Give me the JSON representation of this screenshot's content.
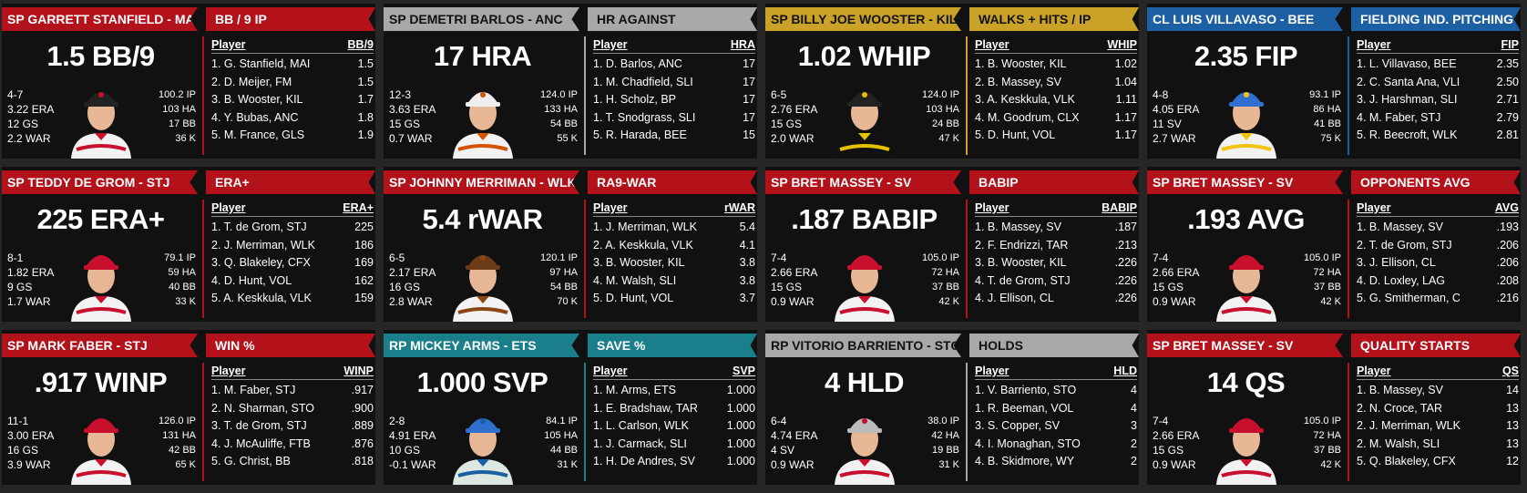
{
  "cards": [
    {
      "header": "SP GARRETT STANFIELD - MAI",
      "stat_title": "BB / 9 IP",
      "big": "1.5 BB/9",
      "left": [
        "4-7",
        "3.22 ERA",
        "12 GS",
        "2.2 WAR"
      ],
      "right": [
        "100.2 IP",
        "103 HA",
        "17 BB",
        "36 K"
      ],
      "col": "BB/9",
      "rows": [
        [
          "1. G. Stanfield, MAI",
          "1.5"
        ],
        [
          "2. D. Meijer, FM",
          "1.5"
        ],
        [
          "3. B. Wooster, KIL",
          "1.7"
        ],
        [
          "4. Y. Bubas, ANC",
          "1.8"
        ],
        [
          "5. M. France, GLS",
          "1.9"
        ]
      ],
      "color": "#b3121b",
      "cap": "#222",
      "jersey": "#f2f2f2",
      "trim": "#c8102e"
    },
    {
      "header": "SP DEMETRI BARLOS - ANC",
      "stat_title": "HR AGAINST",
      "big": "17 HRA",
      "left": [
        "12-3",
        "3.63 ERA",
        "15 GS",
        "0.7 WAR"
      ],
      "right": [
        "124.0 IP",
        "133 HA",
        "54 BB",
        "55 K"
      ],
      "col": "HRA",
      "rows": [
        [
          "1. D. Barlos, ANC",
          "17"
        ],
        [
          "1. M. Chadfield, SLI",
          "17"
        ],
        [
          "1. H. Scholz, BP",
          "17"
        ],
        [
          "1. T. Snodgrass, SLI",
          "17"
        ],
        [
          "5. R. Harada, BEE",
          "15"
        ]
      ],
      "color": "#a8a8a8",
      "cap": "#eee",
      "jersey": "#f2f2f2",
      "trim": "#d35400"
    },
    {
      "header": "SP BILLY JOE WOOSTER - KIL",
      "stat_title": "WALKS + HITS / IP",
      "big": "1.02 WHIP",
      "left": [
        "6-5",
        "2.76 ERA",
        "15 GS",
        "2.0 WAR"
      ],
      "right": [
        "124.0 IP",
        "103 HA",
        "24 BB",
        "47 K"
      ],
      "col": "WHIP",
      "rows": [
        [
          "1. B. Wooster, KIL",
          "1.02"
        ],
        [
          "2. B. Massey, SV",
          "1.04"
        ],
        [
          "3. A. Keskkula, VLK",
          "1.11"
        ],
        [
          "4. M. Goodrum, CLX",
          "1.17"
        ],
        [
          "5. D. Hunt, VOL",
          "1.17"
        ]
      ],
      "color": "#c9a227",
      "cap": "#222",
      "jersey": "#111",
      "trim": "#e5c100"
    },
    {
      "header": "CL LUIS VILLAVASO - BEE",
      "stat_title": "FIELDING IND. PITCHING",
      "big": "2.35 FIP",
      "left": [
        "4-8",
        "4.05 ERA",
        "11 SV",
        "2.7 WAR"
      ],
      "right": [
        "93.1 IP",
        "86 HA",
        "41 BB",
        "75 K"
      ],
      "col": "FIP",
      "rows": [
        [
          "1. L. Villavaso, BEE",
          "2.35"
        ],
        [
          "2. C. Santa Ana, VLI",
          "2.50"
        ],
        [
          "3. J. Harshman, SLI",
          "2.71"
        ],
        [
          "4. M. Faber, STJ",
          "2.79"
        ],
        [
          "5. R. Beecroft, WLK",
          "2.81"
        ]
      ],
      "color": "#1d5fa3",
      "cap": "#2f6fd0",
      "jersey": "#f2f2f2",
      "trim": "#f1c40f"
    },
    {
      "header": "SP TEDDY DE GROM - STJ",
      "stat_title": "ERA+",
      "big": "225 ERA+",
      "left": [
        "8-1",
        "1.82 ERA",
        "9 GS",
        "1.7 WAR"
      ],
      "right": [
        "79.1 IP",
        "59 HA",
        "40 BB",
        "33 K"
      ],
      "col": "ERA+",
      "rows": [
        [
          "1. T. de Grom, STJ",
          "225"
        ],
        [
          "2. J. Merriman, WLK",
          "186"
        ],
        [
          "3. Q. Blakeley, CFX",
          "169"
        ],
        [
          "4. D. Hunt, VOL",
          "162"
        ],
        [
          "5. A. Keskkula, VLK",
          "159"
        ]
      ],
      "color": "#b3121b",
      "cap": "#c8102e",
      "jersey": "#f2f2f2",
      "trim": "#c8102e"
    },
    {
      "header": "SP JOHNNY MERRIMAN - WLK",
      "stat_title": "RA9-WAR",
      "big": "5.4 rWAR",
      "left": [
        "6-5",
        "2.17 ERA",
        "16 GS",
        "2.8 WAR"
      ],
      "right": [
        "120.1 IP",
        "97 HA",
        "54 BB",
        "70 K"
      ],
      "col": "rWAR",
      "rows": [
        [
          "1. J. Merriman, WLK",
          "5.4"
        ],
        [
          "2. A. Keskkula, VLK",
          "4.1"
        ],
        [
          "3. B. Wooster, KIL",
          "3.8"
        ],
        [
          "4. M. Walsh, SLI",
          "3.8"
        ],
        [
          "5. D. Hunt, VOL",
          "3.7"
        ]
      ],
      "color": "#b3121b",
      "cap": "#6b3a16",
      "jersey": "#f2f2f2",
      "trim": "#8b4513"
    },
    {
      "header": "SP BRET MASSEY - SV",
      "stat_title": "BABIP",
      "big": ".187 BABIP",
      "left": [
        "7-4",
        "2.66 ERA",
        "15 GS",
        "0.9 WAR"
      ],
      "right": [
        "105.0 IP",
        "72 HA",
        "37 BB",
        "42 K"
      ],
      "col": "BABIP",
      "rows": [
        [
          "1. B. Massey, SV",
          ".187"
        ],
        [
          "2. F. Endrizzi, TAR",
          ".213"
        ],
        [
          "3. B. Wooster, KIL",
          ".226"
        ],
        [
          "4. T. de Grom, STJ",
          ".226"
        ],
        [
          "4. J. Ellison, CL",
          ".226"
        ]
      ],
      "color": "#b3121b",
      "cap": "#c8102e",
      "jersey": "#f2f2f2",
      "trim": "#c8102e"
    },
    {
      "header": "SP BRET MASSEY - SV",
      "stat_title": "OPPONENTS AVG",
      "big": ".193 AVG",
      "left": [
        "7-4",
        "2.66 ERA",
        "15 GS",
        "0.9 WAR"
      ],
      "right": [
        "105.0 IP",
        "72 HA",
        "37 BB",
        "42 K"
      ],
      "col": "AVG",
      "rows": [
        [
          "1. B. Massey, SV",
          ".193"
        ],
        [
          "2. T. de Grom, STJ",
          ".206"
        ],
        [
          "3. J. Ellison, CL",
          ".206"
        ],
        [
          "4. D. Loxley, LAG",
          ".208"
        ],
        [
          "5. G. Smitherman, C",
          ".216"
        ]
      ],
      "color": "#b3121b",
      "cap": "#c8102e",
      "jersey": "#f2f2f2",
      "trim": "#c8102e"
    },
    {
      "header": "SP MARK FABER - STJ",
      "stat_title": "WIN %",
      "big": ".917 WINP",
      "left": [
        "11-1",
        "3.00 ERA",
        "16 GS",
        "3.9 WAR"
      ],
      "right": [
        "126.0 IP",
        "131 HA",
        "42 BB",
        "65 K"
      ],
      "col": "WINP",
      "rows": [
        [
          "1. M. Faber, STJ",
          ".917"
        ],
        [
          "2. N. Sharman, STO",
          ".900"
        ],
        [
          "3. T. de Grom, STJ",
          ".889"
        ],
        [
          "4. J. McAuliffe, FTB",
          ".876"
        ],
        [
          "5. G. Christ, BB",
          ".818"
        ]
      ],
      "color": "#b3121b",
      "cap": "#c8102e",
      "jersey": "#f2f2f2",
      "trim": "#c8102e"
    },
    {
      "header": "RP MICKEY ARMS - ETS",
      "stat_title": "SAVE %",
      "big": "1.000 SVP",
      "left": [
        "2-8",
        "4.91 ERA",
        "10 GS",
        "-0.1 WAR"
      ],
      "right": [
        "84.1 IP",
        "105 HA",
        "44 BB",
        "31 K"
      ],
      "col": "SVP",
      "rows": [
        [
          "1. M. Arms, ETS",
          "1.000"
        ],
        [
          "1. E. Bradshaw, TAR",
          "1.000"
        ],
        [
          "1. L. Carlson, WLK",
          "1.000"
        ],
        [
          "1. J. Carmack, SLI",
          "1.000"
        ],
        [
          "1. H. De Andres, SV",
          "1.000"
        ]
      ],
      "color": "#1a7f8a",
      "cap": "#2f6fd0",
      "jersey": "#dde8e0",
      "trim": "#1a5fa3"
    },
    {
      "header": "RP VITORIO BARRIENTO - STO",
      "stat_title": "HOLDS",
      "big": "4 HLD",
      "left": [
        "6-4",
        "4.74 ERA",
        "4 SV",
        "0.9 WAR"
      ],
      "right": [
        "38.0 IP",
        "42 HA",
        "19 BB",
        "31 K"
      ],
      "col": "HLD",
      "rows": [
        [
          "1. V. Barriento, STO",
          "4"
        ],
        [
          "1. R. Beeman, VOL",
          "4"
        ],
        [
          "3. S. Copper, SV",
          "3"
        ],
        [
          "4. I. Monaghan, STO",
          "2"
        ],
        [
          "4. B. Skidmore, WY",
          "2"
        ]
      ],
      "color": "#a8a8a8",
      "cap": "#bbb",
      "jersey": "#f2f2f2",
      "trim": "#c8102e"
    },
    {
      "header": "SP BRET MASSEY - SV",
      "stat_title": "QUALITY STARTS",
      "big": "14 QS",
      "left": [
        "7-4",
        "2.66 ERA",
        "15 GS",
        "0.9 WAR"
      ],
      "right": [
        "105.0 IP",
        "72 HA",
        "37 BB",
        "42 K"
      ],
      "col": "QS",
      "rows": [
        [
          "1. B. Massey, SV",
          "14"
        ],
        [
          "2. N. Croce, TAR",
          "13"
        ],
        [
          "2. J. Merriman, WLK",
          "13"
        ],
        [
          "2. M. Walsh, SLI",
          "13"
        ],
        [
          "5. Q. Blakeley, CFX",
          "12"
        ]
      ],
      "color": "#b3121b",
      "cap": "#c8102e",
      "jersey": "#f2f2f2",
      "trim": "#c8102e"
    }
  ]
}
